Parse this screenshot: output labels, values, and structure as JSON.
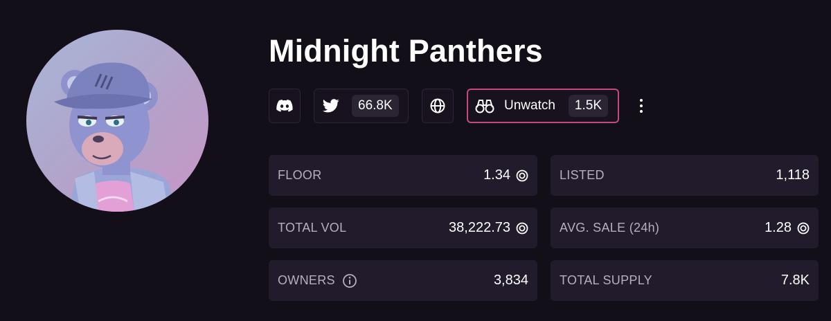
{
  "collection": {
    "name": "Midnight Panthers"
  },
  "socials": {
    "twitter_followers": "66.8K",
    "watch_label": "Unwatch",
    "watch_count": "1.5K"
  },
  "stats": {
    "floor": {
      "label": "FLOOR",
      "value": "1.34"
    },
    "listed": {
      "label": "LISTED",
      "value": "1,118"
    },
    "total_vol": {
      "label": "TOTAL VOL",
      "value": "38,222.73"
    },
    "avg_sale": {
      "label": "AVG. SALE (24h)",
      "value": "1.28"
    },
    "owners": {
      "label": "OWNERS",
      "value": "3,834"
    },
    "total_supply": {
      "label": "TOTAL SUPPLY",
      "value": "7.8K"
    }
  },
  "icons": {
    "discord": "discord-icon",
    "twitter": "twitter-icon",
    "website": "globe-icon",
    "watch": "binoculars-icon",
    "more": "more-vertical-icon",
    "info": "info-icon",
    "currency": "sol-coin-icon"
  },
  "colors": {
    "background": "#130f18",
    "card": "#221b2b",
    "watch_border": "#c74a7c",
    "label": "#b6afbf"
  }
}
